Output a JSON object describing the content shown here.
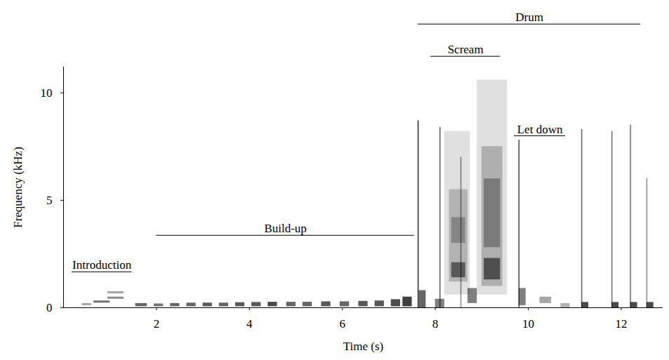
{
  "chart_data": {
    "type": "spectrogram",
    "x_label": "Time (s)",
    "y_label": "Frequency (kHz)",
    "xlim": [
      0,
      12.9
    ],
    "ylim": [
      0,
      11.2
    ],
    "xticks": [
      2,
      4,
      6,
      8,
      10,
      12
    ],
    "yticks": [
      0,
      5,
      10
    ],
    "color": "#000000",
    "segments": [
      {
        "t0": 0.4,
        "t1": 0.6,
        "f0": 0.1,
        "f1": 0.2,
        "level": 0.35
      },
      {
        "t0": 0.65,
        "t1": 1.0,
        "f0": 0.22,
        "f1": 0.32,
        "level": 0.55
      },
      {
        "t0": 0.95,
        "t1": 1.3,
        "f0": 0.4,
        "f1": 0.5,
        "level": 0.45
      },
      {
        "t0": 0.95,
        "t1": 1.3,
        "f0": 0.65,
        "f1": 0.75,
        "level": 0.35
      },
      {
        "t0": 1.55,
        "t1": 1.8,
        "f0": 0.05,
        "f1": 0.2,
        "level": 0.6
      },
      {
        "t0": 1.95,
        "t1": 2.15,
        "f0": 0.05,
        "f1": 0.18,
        "level": 0.55
      },
      {
        "t0": 2.3,
        "t1": 2.5,
        "f0": 0.05,
        "f1": 0.2,
        "level": 0.6
      },
      {
        "t0": 2.65,
        "t1": 2.85,
        "f0": 0.05,
        "f1": 0.22,
        "level": 0.6
      },
      {
        "t0": 3.0,
        "t1": 3.2,
        "f0": 0.05,
        "f1": 0.22,
        "level": 0.65
      },
      {
        "t0": 3.35,
        "t1": 3.55,
        "f0": 0.05,
        "f1": 0.22,
        "level": 0.6
      },
      {
        "t0": 3.7,
        "t1": 3.9,
        "f0": 0.05,
        "f1": 0.24,
        "level": 0.65
      },
      {
        "t0": 4.05,
        "t1": 4.25,
        "f0": 0.05,
        "f1": 0.25,
        "level": 0.65
      },
      {
        "t0": 4.4,
        "t1": 4.6,
        "f0": 0.05,
        "f1": 0.26,
        "level": 0.7
      },
      {
        "t0": 4.8,
        "t1": 5.0,
        "f0": 0.05,
        "f1": 0.26,
        "level": 0.6
      },
      {
        "t0": 5.15,
        "t1": 5.35,
        "f0": 0.05,
        "f1": 0.26,
        "level": 0.6
      },
      {
        "t0": 5.55,
        "t1": 5.75,
        "f0": 0.05,
        "f1": 0.28,
        "level": 0.65
      },
      {
        "t0": 5.95,
        "t1": 6.15,
        "f0": 0.05,
        "f1": 0.28,
        "level": 0.6
      },
      {
        "t0": 6.35,
        "t1": 6.55,
        "f0": 0.05,
        "f1": 0.3,
        "level": 0.65
      },
      {
        "t0": 6.7,
        "t1": 6.9,
        "f0": 0.05,
        "f1": 0.32,
        "level": 0.65
      },
      {
        "t0": 7.05,
        "t1": 7.25,
        "f0": 0.05,
        "f1": 0.38,
        "level": 0.7
      },
      {
        "t0": 7.3,
        "t1": 7.5,
        "f0": 0.05,
        "f1": 0.5,
        "level": 0.75
      },
      {
        "t0": 7.65,
        "t1": 7.8,
        "f0": 0.0,
        "f1": 0.8,
        "level": 0.6
      },
      {
        "t0": 8.0,
        "t1": 8.2,
        "f0": 0.0,
        "f1": 0.4,
        "level": 0.5
      },
      {
        "t0": 8.2,
        "t1": 8.75,
        "f0": 0.6,
        "f1": 8.2,
        "level": 0.12
      },
      {
        "t0": 8.3,
        "t1": 8.7,
        "f0": 1.2,
        "f1": 5.5,
        "level": 0.2
      },
      {
        "t0": 8.35,
        "t1": 8.65,
        "f0": 1.4,
        "f1": 2.1,
        "level": 0.5
      },
      {
        "t0": 8.35,
        "t1": 8.65,
        "f0": 3.0,
        "f1": 4.2,
        "level": 0.25
      },
      {
        "t0": 8.7,
        "t1": 8.9,
        "f0": 0.2,
        "f1": 0.9,
        "level": 0.5
      },
      {
        "t0": 8.9,
        "t1": 9.55,
        "f0": 0.6,
        "f1": 10.6,
        "level": 0.12
      },
      {
        "t0": 9.0,
        "t1": 9.45,
        "f0": 1.0,
        "f1": 7.5,
        "level": 0.22
      },
      {
        "t0": 9.05,
        "t1": 9.4,
        "f0": 1.3,
        "f1": 2.3,
        "level": 0.55
      },
      {
        "t0": 9.05,
        "t1": 9.4,
        "f0": 2.8,
        "f1": 6.0,
        "level": 0.3
      },
      {
        "t0": 9.8,
        "t1": 9.95,
        "f0": 0.1,
        "f1": 0.9,
        "level": 0.5
      },
      {
        "t0": 10.25,
        "t1": 10.5,
        "f0": 0.2,
        "f1": 0.5,
        "level": 0.35
      },
      {
        "t0": 10.7,
        "t1": 10.9,
        "f0": 0.0,
        "f1": 0.2,
        "level": 0.3
      },
      {
        "t0": 11.15,
        "t1": 11.3,
        "f0": 0.0,
        "f1": 0.25,
        "level": 0.7
      },
      {
        "t0": 11.8,
        "t1": 11.95,
        "f0": 0.0,
        "f1": 0.25,
        "level": 0.7
      },
      {
        "t0": 12.2,
        "t1": 12.35,
        "f0": 0.0,
        "f1": 0.25,
        "level": 0.7
      },
      {
        "t0": 12.55,
        "t1": 12.7,
        "f0": 0.0,
        "f1": 0.25,
        "level": 0.7
      }
    ],
    "pulses": [
      {
        "t": 7.63,
        "f1": 8.7,
        "level": 0.8
      },
      {
        "t": 8.1,
        "f1": 8.4,
        "level": 0.6
      },
      {
        "t": 8.55,
        "f1": 7.0,
        "level": 0.45
      },
      {
        "t": 9.8,
        "f1": 7.8,
        "level": 0.7
      },
      {
        "t": 11.15,
        "f1": 8.3,
        "level": 0.6
      },
      {
        "t": 11.8,
        "f1": 8.2,
        "level": 0.55
      },
      {
        "t": 12.2,
        "f1": 8.5,
        "level": 0.55
      },
      {
        "t": 12.55,
        "f1": 6.0,
        "level": 0.45
      }
    ],
    "annotations": [
      {
        "text": "Introduction",
        "x1": 0.18,
        "x2": 1.47,
        "y": 1.67
      },
      {
        "text": "Build-up",
        "x1": 2.0,
        "x2": 7.55,
        "y": 3.37
      },
      {
        "text": "Scream",
        "x1": 7.9,
        "x2": 9.4,
        "y": 11.7
      },
      {
        "text": "Let down",
        "x1": 9.7,
        "x2": 10.8,
        "y": 8.0
      },
      {
        "text": "Drum",
        "x1": 7.63,
        "x2": 12.42,
        "y": 13.2
      }
    ]
  }
}
